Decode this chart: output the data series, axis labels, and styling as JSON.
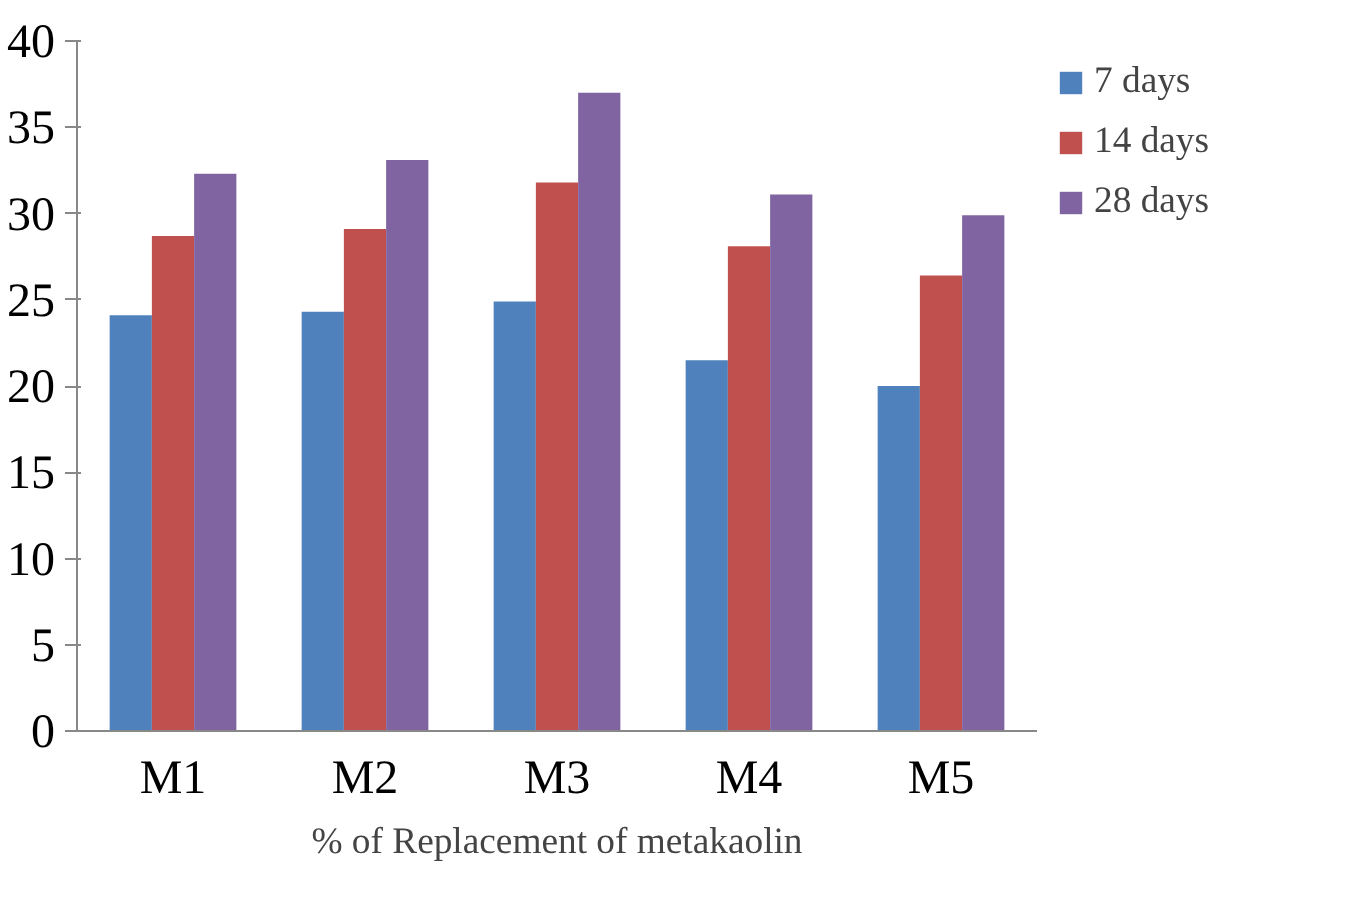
{
  "chart_data": {
    "type": "bar",
    "xlabel": "% of Replacement of metakaolin",
    "categories": [
      "M1",
      "M2",
      "M3",
      "M4",
      "M5"
    ],
    "series": [
      {
        "name": "7 days",
        "color": "#4f81bd",
        "values": [
          24.1,
          24.3,
          24.9,
          21.5,
          20.0
        ]
      },
      {
        "name": "14 days",
        "color": "#c0504d",
        "values": [
          28.7,
          29.1,
          31.8,
          28.1,
          26.4
        ]
      },
      {
        "name": "28 days",
        "color": "#8064a2",
        "values": [
          32.3,
          33.1,
          37.0,
          31.1,
          29.9
        ]
      }
    ],
    "ylim": [
      0,
      40
    ],
    "yticks": [
      0,
      5,
      10,
      15,
      20,
      25,
      30,
      35,
      40
    ],
    "grid": false,
    "legend": "top right"
  }
}
